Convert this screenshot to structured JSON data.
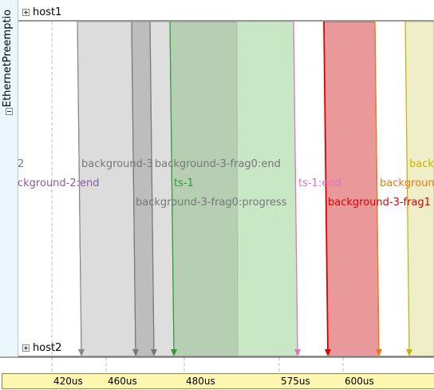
{
  "module": {
    "name": "EthernetPreemptio"
  },
  "lanes": [
    {
      "name": "host1"
    },
    {
      "name": "host2"
    }
  ],
  "messages": [
    {
      "label": "2",
      "color": "#777777"
    },
    {
      "label": "ckground-2:end",
      "color": "#8a5aa8"
    },
    {
      "label": "background-3",
      "color": "#777777"
    },
    {
      "label": "background-3-frag0:end",
      "color": "#777777"
    },
    {
      "label": "background-3-frag0:progress",
      "color": "#777777"
    },
    {
      "label": "ts-1",
      "color": "#2f9a2f"
    },
    {
      "label": "ts-1:end",
      "color": "#e070c0"
    },
    {
      "label": "background-3-frag1",
      "color": "#dd0000"
    },
    {
      "label": "backgroun",
      "color": "#ee7711"
    },
    {
      "label": "back",
      "color": "#c8b400"
    }
  ],
  "ticks": [
    "420us",
    "460us",
    "480us",
    "575us",
    "600us"
  ],
  "colors": {
    "grey": "#d8d8d8",
    "dark_grey": "#b4b4b4",
    "green": "#c6e6c3",
    "red": "#e9999a",
    "yellow": "#eeeec8"
  }
}
